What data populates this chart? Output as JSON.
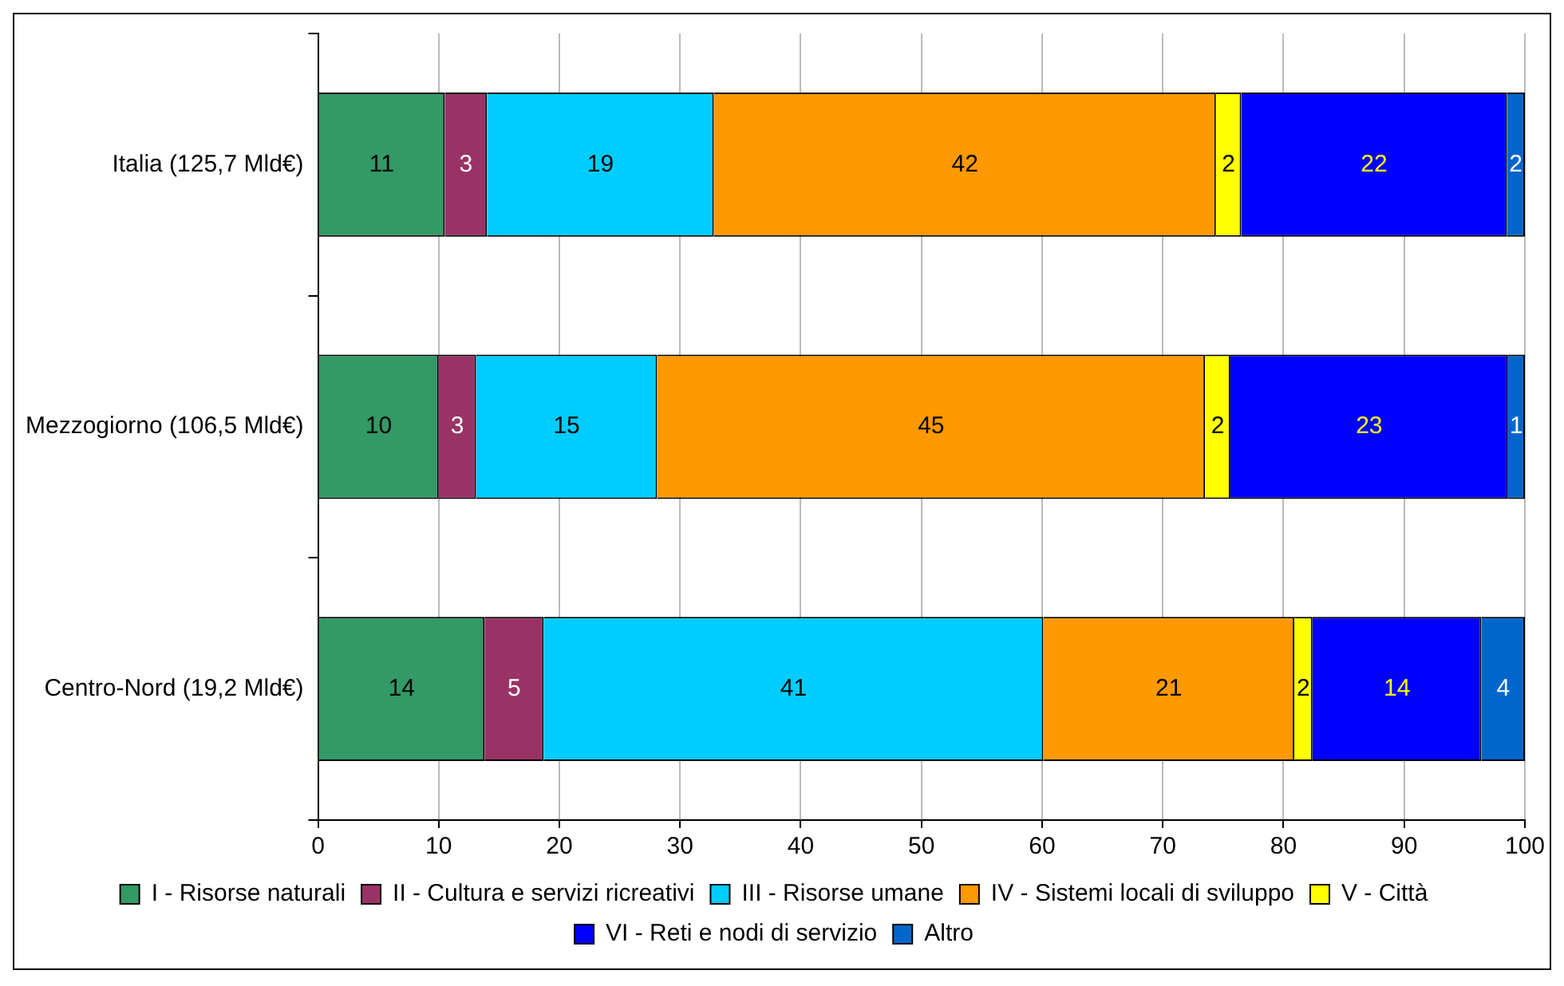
{
  "chart_data": {
    "type": "bar",
    "orientation": "horizontal",
    "stacked": true,
    "categories": [
      "Italia (125,7 Mld€)",
      "Mezzogiorno (106,5 Mld€)",
      "Centro-Nord (19,2 Mld€)"
    ],
    "series": [
      {
        "name": "I - Risorse naturali",
        "color": "#339966",
        "values": [
          10.5,
          10.0,
          13.8
        ],
        "value_labels": [
          "11",
          "10",
          "14"
        ]
      },
      {
        "name": "II - Cultura e servizi ricreativi",
        "color": "#993366",
        "values": [
          3.5,
          3.1,
          4.9
        ],
        "value_labels": [
          "3",
          "3",
          "5"
        ]
      },
      {
        "name": "III - Risorse umane",
        "color": "#00ccff",
        "values": [
          18.8,
          15.0,
          41.4
        ],
        "value_labels": [
          "19",
          "15",
          "41"
        ]
      },
      {
        "name": "IV - Sistemi locali di sviluppo",
        "color": "#ff9900",
        "values": [
          41.6,
          45.4,
          20.8
        ],
        "value_labels": [
          "42",
          "45",
          "21"
        ]
      },
      {
        "name": "V - Città",
        "color": "#ffff00",
        "values": [
          2.1,
          2.1,
          1.5
        ],
        "value_labels": [
          "2",
          "2",
          "2"
        ]
      },
      {
        "name": "VI - Reti e nodi di servizio",
        "color": "#0000ff",
        "values": [
          22.0,
          23.0,
          14.0
        ],
        "value_labels": [
          "22",
          "23",
          "14"
        ]
      },
      {
        "name": "Altro",
        "color": "#0066cc",
        "values": [
          1.5,
          1.4,
          3.6
        ],
        "value_labels": [
          "2",
          "1",
          "4"
        ]
      }
    ],
    "xlim": [
      0,
      100
    ],
    "xticks": [
      0,
      10,
      20,
      30,
      40,
      50,
      60,
      70,
      80,
      90,
      100
    ],
    "grid": "x",
    "legend": "bottom"
  }
}
